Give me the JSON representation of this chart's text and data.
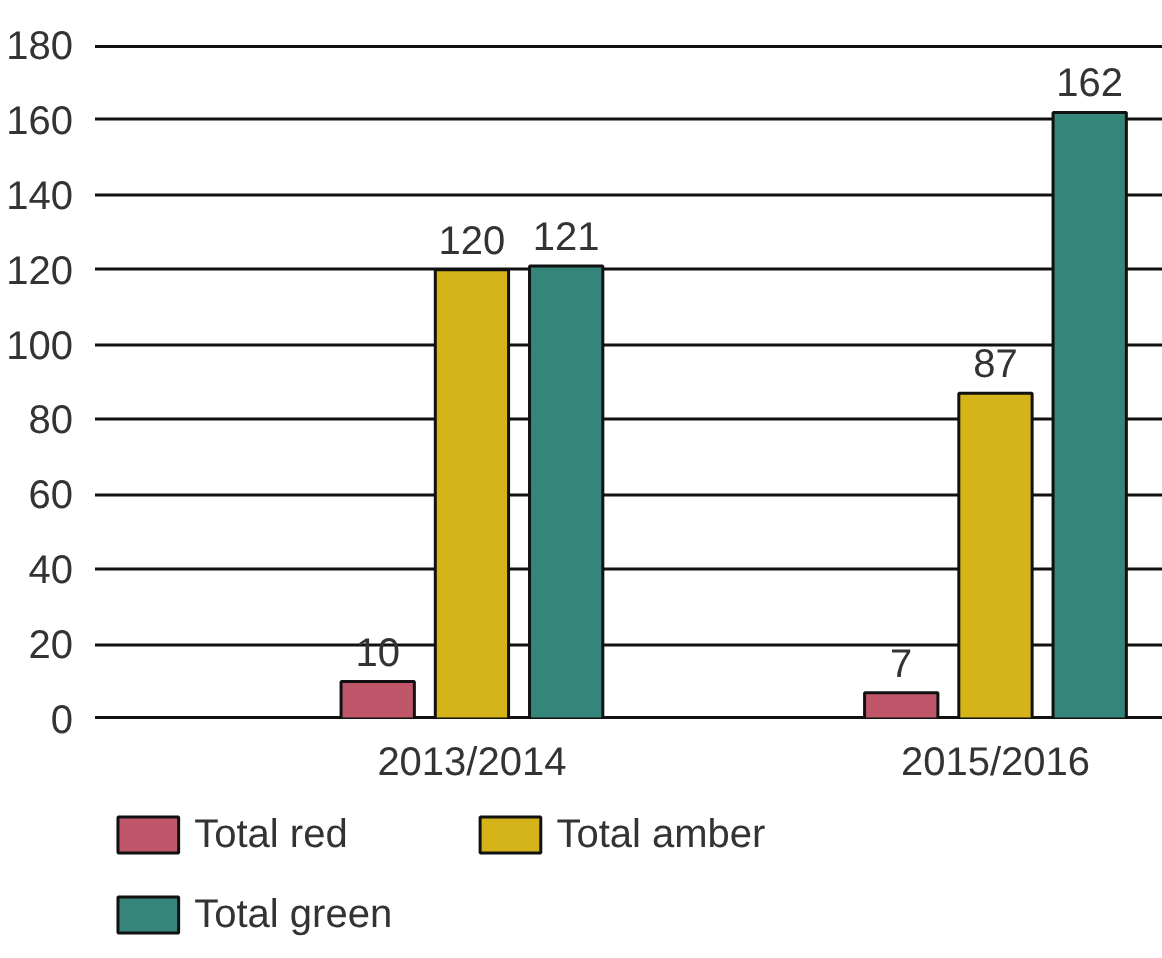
{
  "chart_data": {
    "type": "bar",
    "categories": [
      "2013/2014",
      "2015/2016"
    ],
    "series": [
      {
        "name": "Total red",
        "color": "#c0566a",
        "values": [
          10,
          7
        ]
      },
      {
        "name": "Total amber",
        "color": "#d4b418",
        "values": [
          120,
          87
        ]
      },
      {
        "name": "Total green",
        "color": "#35857a",
        "values": [
          121,
          162
        ]
      }
    ],
    "ylim": [
      0,
      180
    ],
    "yticks": [
      0,
      20,
      40,
      60,
      80,
      100,
      120,
      140,
      160,
      180
    ],
    "grid": "y",
    "legend": "bottom",
    "data_labels": true
  }
}
